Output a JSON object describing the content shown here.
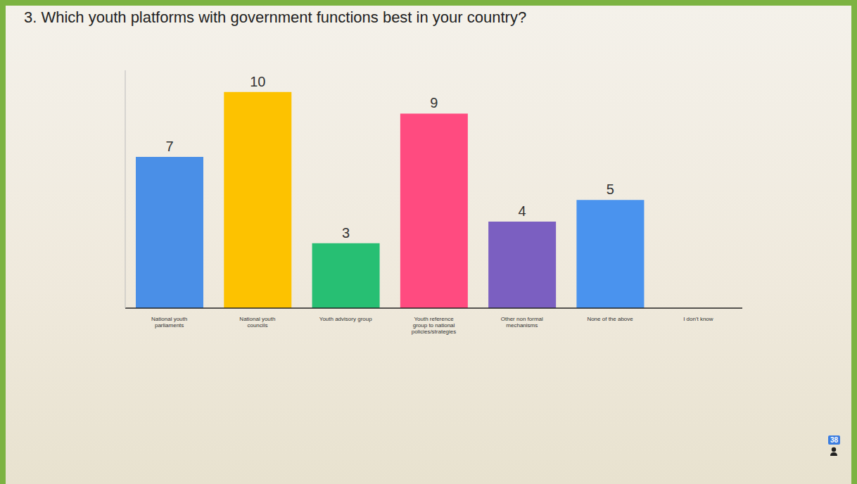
{
  "chart_data": {
    "type": "bar",
    "title": "3. Which youth platforms with government functions best in your country?",
    "categories": [
      "National youth parliaments",
      "National youth councils",
      "Youth advisory group",
      "Youth reference group to national policies/strategies",
      "Other non formal mechanisms",
      "None of the above",
      "I don't know"
    ],
    "values": [
      7,
      10,
      3,
      9,
      4,
      5,
      0
    ],
    "colors": [
      "#4a8fe7",
      "#fdc200",
      "#27bf73",
      "#ff4b80",
      "#7b5fc1",
      "#4a93ee",
      "#4a8fe7"
    ],
    "ylim": [
      0,
      11
    ],
    "grid": false,
    "data_labels": true,
    "tick_labels": "x",
    "annotations": [
      "38"
    ]
  }
}
